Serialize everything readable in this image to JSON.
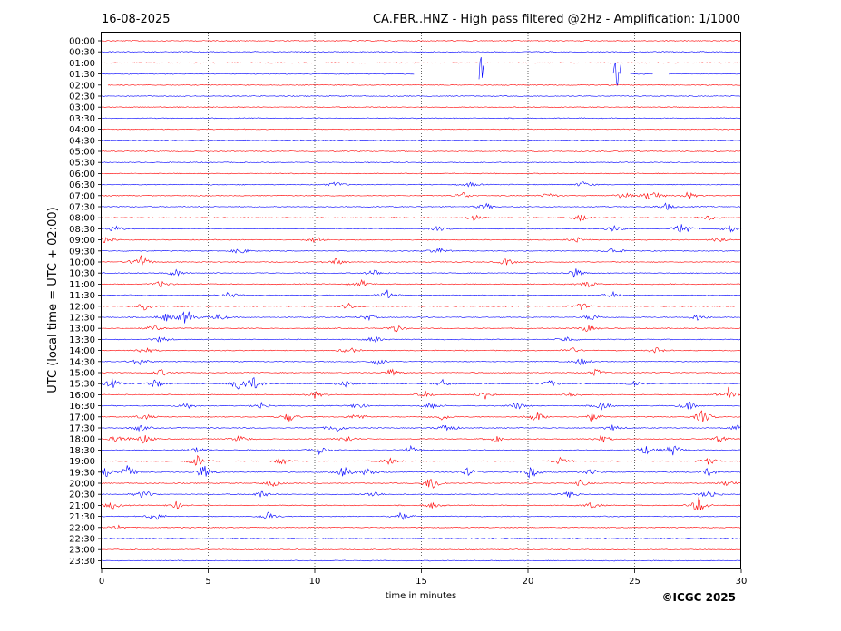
{
  "header": {
    "date": "16-08-2025",
    "title": "CA.FBR..HNZ - High pass filtered @2Hz - Amplification: 1/1000"
  },
  "footer": {
    "copyright": "©ICGC 2025"
  },
  "chart_data": {
    "type": "line",
    "title": "CA.FBR..HNZ - High pass filtered @2Hz - Amplification: 1/1000",
    "xlabel": "time in minutes",
    "ylabel": "UTC (local time = UTC + 02:00)",
    "xlim": [
      0,
      30
    ],
    "x_ticks": [
      0,
      5,
      10,
      15,
      20,
      25,
      30
    ],
    "grid": "vertical dotted lines at 5-minute intervals",
    "trace_colors": [
      "#ff0000",
      "#0000ff"
    ],
    "rows": [
      {
        "label": "00:00",
        "color": "#ff0000",
        "events": []
      },
      {
        "label": "00:30",
        "color": "#0000ff",
        "events": []
      },
      {
        "label": "01:00",
        "color": "#ff0000",
        "events": []
      },
      {
        "label": "01:30",
        "color": "#0000ff",
        "gaps": [
          [
            14.7,
            17.7
          ],
          [
            18.0,
            24.0
          ],
          [
            24.4,
            24.8
          ],
          [
            25.9,
            26.6
          ]
        ],
        "events": [
          {
            "t": 17.8,
            "amp": 1.0
          },
          {
            "t": 24.2,
            "amp": 1.0
          },
          {
            "t": 24.4,
            "amp": 0.9
          }
        ]
      },
      {
        "label": "02:00",
        "color": "#ff0000",
        "gaps": [
          [
            0,
            0.3
          ]
        ],
        "events": []
      },
      {
        "label": "02:30",
        "color": "#0000ff",
        "events": []
      },
      {
        "label": "03:00",
        "color": "#ff0000",
        "events": []
      },
      {
        "label": "03:30",
        "color": "#0000ff",
        "events": []
      },
      {
        "label": "04:00",
        "color": "#ff0000",
        "events": []
      },
      {
        "label": "04:30",
        "color": "#0000ff",
        "events": []
      },
      {
        "label": "05:00",
        "color": "#ff0000",
        "events": []
      },
      {
        "label": "05:30",
        "color": "#0000ff",
        "events": []
      },
      {
        "label": "06:00",
        "color": "#ff0000",
        "events": []
      },
      {
        "label": "06:30",
        "color": "#0000ff",
        "events": [
          {
            "t": 11.0,
            "amp": 0.12
          },
          {
            "t": 17.3,
            "amp": 0.1
          },
          {
            "t": 22.6,
            "amp": 0.12
          }
        ]
      },
      {
        "label": "07:00",
        "color": "#ff0000",
        "events": [
          {
            "t": 17.0,
            "amp": 0.15
          },
          {
            "t": 21.0,
            "amp": 0.12
          },
          {
            "t": 24.5,
            "amp": 0.15
          },
          {
            "t": 25.8,
            "amp": 0.3
          },
          {
            "t": 27.5,
            "amp": 0.15
          }
        ]
      },
      {
        "label": "07:30",
        "color": "#0000ff",
        "events": [
          {
            "t": 18.0,
            "amp": 0.15
          },
          {
            "t": 26.5,
            "amp": 0.15
          }
        ]
      },
      {
        "label": "08:00",
        "color": "#ff0000",
        "events": [
          {
            "t": 17.5,
            "amp": 0.12
          },
          {
            "t": 22.5,
            "amp": 0.15
          },
          {
            "t": 28.5,
            "amp": 0.12
          }
        ]
      },
      {
        "label": "08:30",
        "color": "#0000ff",
        "events": [
          {
            "t": 0.6,
            "amp": 0.15
          },
          {
            "t": 15.8,
            "amp": 0.12
          },
          {
            "t": 24.0,
            "amp": 0.15
          },
          {
            "t": 27.3,
            "amp": 0.35
          },
          {
            "t": 29.5,
            "amp": 0.15
          }
        ]
      },
      {
        "label": "09:00",
        "color": "#ff0000",
        "events": [
          {
            "t": 0.2,
            "amp": 0.12
          },
          {
            "t": 10.1,
            "amp": 0.15
          },
          {
            "t": 22.3,
            "amp": 0.12
          },
          {
            "t": 29.0,
            "amp": 0.12
          }
        ]
      },
      {
        "label": "09:30",
        "color": "#0000ff",
        "events": [
          {
            "t": 6.5,
            "amp": 0.15
          },
          {
            "t": 15.8,
            "amp": 0.15
          },
          {
            "t": 24.0,
            "amp": 0.15
          }
        ]
      },
      {
        "label": "10:00",
        "color": "#ff0000",
        "events": [
          {
            "t": 1.8,
            "amp": 0.35
          },
          {
            "t": 11.0,
            "amp": 0.15
          },
          {
            "t": 19.0,
            "amp": 0.15
          }
        ]
      },
      {
        "label": "10:30",
        "color": "#0000ff",
        "events": [
          {
            "t": 3.5,
            "amp": 0.15
          },
          {
            "t": 12.8,
            "amp": 0.15
          },
          {
            "t": 22.2,
            "amp": 0.2
          }
        ]
      },
      {
        "label": "11:00",
        "color": "#ff0000",
        "events": [
          {
            "t": 2.8,
            "amp": 0.15
          },
          {
            "t": 12.2,
            "amp": 0.15
          },
          {
            "t": 22.8,
            "amp": 0.15
          }
        ]
      },
      {
        "label": "11:30",
        "color": "#0000ff",
        "events": [
          {
            "t": 6.0,
            "amp": 0.15
          },
          {
            "t": 13.4,
            "amp": 0.2
          },
          {
            "t": 24.0,
            "amp": 0.12
          }
        ]
      },
      {
        "label": "12:00",
        "color": "#ff0000",
        "events": [
          {
            "t": 2.0,
            "amp": 0.15
          },
          {
            "t": 11.6,
            "amp": 0.15
          },
          {
            "t": 22.5,
            "amp": 0.15
          }
        ]
      },
      {
        "label": "12:30",
        "color": "#0000ff",
        "events": [
          {
            "t": 3.0,
            "amp": 0.2
          },
          {
            "t": 4.0,
            "amp": 0.35
          },
          {
            "t": 5.5,
            "amp": 0.15
          },
          {
            "t": 12.5,
            "amp": 0.12
          },
          {
            "t": 23.0,
            "amp": 0.15
          },
          {
            "t": 28.0,
            "amp": 0.15
          }
        ]
      },
      {
        "label": "13:00",
        "color": "#ff0000",
        "events": [
          {
            "t": 2.5,
            "amp": 0.15
          },
          {
            "t": 13.8,
            "amp": 0.15
          },
          {
            "t": 22.8,
            "amp": 0.15
          }
        ]
      },
      {
        "label": "13:30",
        "color": "#0000ff",
        "events": [
          {
            "t": 2.8,
            "amp": 0.15
          },
          {
            "t": 12.8,
            "amp": 0.15
          },
          {
            "t": 21.8,
            "amp": 0.15
          }
        ]
      },
      {
        "label": "14:00",
        "color": "#ff0000",
        "events": [
          {
            "t": 2.0,
            "amp": 0.15
          },
          {
            "t": 11.6,
            "amp": 0.15
          },
          {
            "t": 22.0,
            "amp": 0.15
          },
          {
            "t": 26.0,
            "amp": 0.12
          }
        ]
      },
      {
        "label": "14:30",
        "color": "#0000ff",
        "events": [
          {
            "t": 1.8,
            "amp": 0.15
          },
          {
            "t": 13.0,
            "amp": 0.15
          },
          {
            "t": 22.5,
            "amp": 0.15
          }
        ]
      },
      {
        "label": "15:00",
        "color": "#ff0000",
        "events": [
          {
            "t": 2.8,
            "amp": 0.15
          },
          {
            "t": 13.6,
            "amp": 0.15
          },
          {
            "t": 23.2,
            "amp": 0.15
          }
        ]
      },
      {
        "label": "15:30",
        "color": "#0000ff",
        "events": [
          {
            "t": 0.5,
            "amp": 0.2
          },
          {
            "t": 2.5,
            "amp": 0.2
          },
          {
            "t": 6.5,
            "amp": 0.35
          },
          {
            "t": 7.2,
            "amp": 0.25
          },
          {
            "t": 11.5,
            "amp": 0.15
          },
          {
            "t": 16.0,
            "amp": 0.15
          },
          {
            "t": 21.0,
            "amp": 0.15
          },
          {
            "t": 25.0,
            "amp": 0.15
          }
        ]
      },
      {
        "label": "16:00",
        "color": "#ff0000",
        "events": [
          {
            "t": 10.0,
            "amp": 0.15
          },
          {
            "t": 15.2,
            "amp": 0.12
          },
          {
            "t": 18.0,
            "amp": 0.2
          },
          {
            "t": 22.0,
            "amp": 0.12
          },
          {
            "t": 29.4,
            "amp": 0.3
          }
        ]
      },
      {
        "label": "16:30",
        "color": "#0000ff",
        "events": [
          {
            "t": 4.0,
            "amp": 0.15
          },
          {
            "t": 7.5,
            "amp": 0.15
          },
          {
            "t": 12.0,
            "amp": 0.15
          },
          {
            "t": 15.5,
            "amp": 0.15
          },
          {
            "t": 19.5,
            "amp": 0.15
          },
          {
            "t": 23.5,
            "amp": 0.2
          },
          {
            "t": 27.5,
            "amp": 0.2
          }
        ]
      },
      {
        "label": "17:00",
        "color": "#ff0000",
        "events": [
          {
            "t": 2.0,
            "amp": 0.15
          },
          {
            "t": 8.8,
            "amp": 0.2
          },
          {
            "t": 12.0,
            "amp": 0.15
          },
          {
            "t": 16.0,
            "amp": 0.15
          },
          {
            "t": 20.4,
            "amp": 0.25
          },
          {
            "t": 23.0,
            "amp": 0.2
          },
          {
            "t": 28.2,
            "amp": 0.3
          }
        ]
      },
      {
        "label": "17:30",
        "color": "#0000ff",
        "events": [
          {
            "t": 1.8,
            "amp": 0.15
          },
          {
            "t": 11.0,
            "amp": 0.2
          },
          {
            "t": 16.2,
            "amp": 0.2
          },
          {
            "t": 24.0,
            "amp": 0.15
          },
          {
            "t": 29.8,
            "amp": 0.15
          }
        ]
      },
      {
        "label": "18:00",
        "color": "#ff0000",
        "events": [
          {
            "t": 0.8,
            "amp": 0.2
          },
          {
            "t": 2.0,
            "amp": 0.2
          },
          {
            "t": 6.5,
            "amp": 0.15
          },
          {
            "t": 11.5,
            "amp": 0.15
          },
          {
            "t": 18.5,
            "amp": 0.12
          },
          {
            "t": 23.5,
            "amp": 0.15
          },
          {
            "t": 29.0,
            "amp": 0.15
          }
        ]
      },
      {
        "label": "18:30",
        "color": "#0000ff",
        "events": [
          {
            "t": 4.5,
            "amp": 0.15
          },
          {
            "t": 10.2,
            "amp": 0.15
          },
          {
            "t": 14.5,
            "amp": 0.15
          },
          {
            "t": 25.5,
            "amp": 0.2
          },
          {
            "t": 26.8,
            "amp": 0.25
          }
        ]
      },
      {
        "label": "19:00",
        "color": "#ff0000",
        "events": [
          {
            "t": 4.5,
            "amp": 0.25
          },
          {
            "t": 8.5,
            "amp": 0.15
          },
          {
            "t": 13.5,
            "amp": 0.15
          },
          {
            "t": 21.5,
            "amp": 0.15
          },
          {
            "t": 28.5,
            "amp": 0.15
          }
        ]
      },
      {
        "label": "19:30",
        "color": "#0000ff",
        "events": [
          {
            "t": 0.2,
            "amp": 0.2
          },
          {
            "t": 1.2,
            "amp": 0.3
          },
          {
            "t": 4.8,
            "amp": 0.3
          },
          {
            "t": 11.3,
            "amp": 0.3
          },
          {
            "t": 12.5,
            "amp": 0.2
          },
          {
            "t": 17.2,
            "amp": 0.2
          },
          {
            "t": 20.1,
            "amp": 0.3
          },
          {
            "t": 23.0,
            "amp": 0.15
          },
          {
            "t": 28.5,
            "amp": 0.2
          }
        ]
      },
      {
        "label": "20:00",
        "color": "#ff0000",
        "events": [
          {
            "t": 8.0,
            "amp": 0.15
          },
          {
            "t": 15.5,
            "amp": 0.35
          },
          {
            "t": 22.5,
            "amp": 0.15
          },
          {
            "t": 29.4,
            "amp": 0.15
          }
        ]
      },
      {
        "label": "20:30",
        "color": "#0000ff",
        "events": [
          {
            "t": 2.0,
            "amp": 0.2
          },
          {
            "t": 7.5,
            "amp": 0.15
          },
          {
            "t": 12.8,
            "amp": 0.15
          },
          {
            "t": 22.0,
            "amp": 0.15
          },
          {
            "t": 28.5,
            "amp": 0.2
          }
        ]
      },
      {
        "label": "21:00",
        "color": "#ff0000",
        "events": [
          {
            "t": 0.5,
            "amp": 0.15
          },
          {
            "t": 3.5,
            "amp": 0.15
          },
          {
            "t": 15.5,
            "amp": 0.12
          },
          {
            "t": 23.0,
            "amp": 0.15
          },
          {
            "t": 28.0,
            "amp": 0.35
          }
        ]
      },
      {
        "label": "21:30",
        "color": "#0000ff",
        "events": [
          {
            "t": 2.5,
            "amp": 0.2
          },
          {
            "t": 7.8,
            "amp": 0.2
          },
          {
            "t": 14.0,
            "amp": 0.2
          }
        ]
      },
      {
        "label": "22:00",
        "color": "#ff0000",
        "events": [
          {
            "t": 0.8,
            "amp": 0.1
          }
        ]
      },
      {
        "label": "22:30",
        "color": "#0000ff",
        "events": []
      },
      {
        "label": "23:00",
        "color": "#ff0000",
        "events": []
      },
      {
        "label": "23:30",
        "color": "#0000ff",
        "events": []
      }
    ]
  }
}
